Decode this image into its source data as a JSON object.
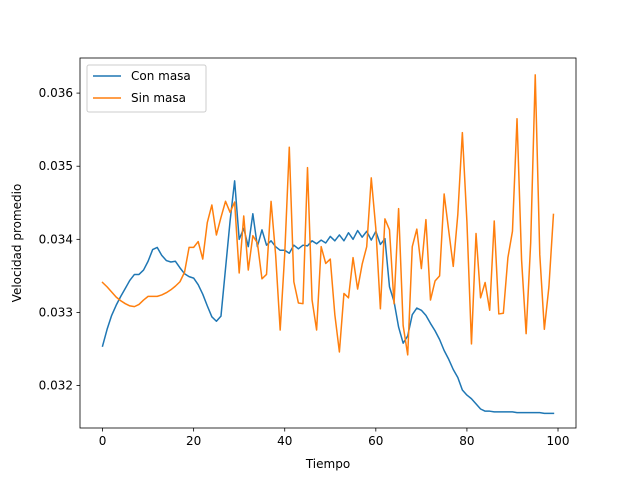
{
  "chart_data": {
    "type": "line",
    "title": "",
    "xlabel": "Tiempo",
    "ylabel": "Velocidad promedio",
    "xlim": [
      -4.95,
      103.95
    ],
    "ylim": [
      0.03142,
      0.03648
    ],
    "xticks": [
      0,
      20,
      40,
      60,
      80,
      100
    ],
    "yticks": [
      0.032,
      0.033,
      0.034,
      0.035,
      0.036
    ],
    "ytick_labels": [
      "0.032",
      "0.033",
      "0.034",
      "0.035",
      "0.036"
    ],
    "grid": false,
    "legend": "upper-left",
    "series": [
      {
        "name": "Con masa",
        "color": "#1f77b4",
        "x": [
          0,
          1,
          2,
          3,
          4,
          5,
          6,
          7,
          8,
          9,
          10,
          11,
          12,
          13,
          14,
          15,
          16,
          17,
          18,
          19,
          20,
          21,
          22,
          23,
          24,
          25,
          26,
          27,
          28,
          29,
          30,
          31,
          32,
          33,
          34,
          35,
          36,
          37,
          38,
          39,
          40,
          41,
          42,
          43,
          44,
          45,
          46,
          47,
          48,
          49,
          50,
          51,
          52,
          53,
          54,
          55,
          56,
          57,
          58,
          59,
          60,
          61,
          62,
          63,
          64,
          65,
          66,
          67,
          68,
          69,
          70,
          71,
          72,
          73,
          74,
          75,
          76,
          77,
          78,
          79,
          80,
          81,
          82,
          83,
          84,
          85,
          86,
          87,
          88,
          89,
          90,
          91,
          92,
          93,
          94,
          95,
          96,
          97,
          98,
          99
        ],
        "values": [
          0.03254,
          0.03277,
          0.03296,
          0.0331,
          0.03322,
          0.03333,
          0.03344,
          0.03352,
          0.03352,
          0.03358,
          0.0337,
          0.03386,
          0.03389,
          0.03378,
          0.03371,
          0.03369,
          0.0337,
          0.03361,
          0.03353,
          0.03349,
          0.03347,
          0.03338,
          0.03325,
          0.03309,
          0.03294,
          0.03288,
          0.03295,
          0.0336,
          0.03425,
          0.0348,
          0.034,
          0.03415,
          0.0339,
          0.03435,
          0.0339,
          0.03413,
          0.03392,
          0.03398,
          0.0339,
          0.03385,
          0.03385,
          0.03381,
          0.03392,
          0.03387,
          0.03392,
          0.03391,
          0.03398,
          0.03394,
          0.03399,
          0.03395,
          0.03404,
          0.03398,
          0.03406,
          0.03398,
          0.03409,
          0.034,
          0.03412,
          0.03403,
          0.03411,
          0.03399,
          0.03411,
          0.03393,
          0.03401,
          0.03335,
          0.03315,
          0.0328,
          0.03258,
          0.03268,
          0.03297,
          0.03306,
          0.03303,
          0.03296,
          0.03285,
          0.03275,
          0.03263,
          0.03248,
          0.03236,
          0.03222,
          0.03211,
          0.03194,
          0.03187,
          0.03182,
          0.03175,
          0.03168,
          0.03165,
          0.03165,
          0.03164,
          0.03164,
          0.03164,
          0.03164,
          0.03164,
          0.03163,
          0.03163,
          0.03163,
          0.03163,
          0.03163,
          0.03163,
          0.03162,
          0.03162,
          0.03162
        ]
      },
      {
        "name": "Sin masa",
        "color": "#ff7f0e",
        "x": [
          0,
          1,
          2,
          3,
          4,
          5,
          6,
          7,
          8,
          9,
          10,
          11,
          12,
          13,
          14,
          15,
          16,
          17,
          18,
          19,
          20,
          21,
          22,
          23,
          24,
          25,
          26,
          27,
          28,
          29,
          30,
          31,
          32,
          33,
          34,
          35,
          36,
          37,
          38,
          39,
          40,
          41,
          42,
          43,
          44,
          45,
          46,
          47,
          48,
          49,
          50,
          51,
          52,
          53,
          54,
          55,
          56,
          57,
          58,
          59,
          60,
          61,
          62,
          63,
          64,
          65,
          66,
          67,
          68,
          69,
          70,
          71,
          72,
          73,
          74,
          75,
          76,
          77,
          78,
          79,
          80,
          81,
          82,
          83,
          84,
          85,
          86,
          87,
          88,
          89,
          90,
          91,
          92,
          93,
          94,
          95,
          96,
          97,
          98,
          99
        ],
        "values": [
          0.03341,
          0.03335,
          0.03328,
          0.03321,
          0.03316,
          0.03312,
          0.03309,
          0.03308,
          0.03311,
          0.03317,
          0.03322,
          0.03322,
          0.03322,
          0.03324,
          0.03327,
          0.03331,
          0.03336,
          0.03342,
          0.03355,
          0.03389,
          0.03389,
          0.03397,
          0.03373,
          0.03423,
          0.03447,
          0.03406,
          0.0343,
          0.03452,
          0.03437,
          0.03451,
          0.03354,
          0.03432,
          0.03358,
          0.03405,
          0.03395,
          0.03346,
          0.03352,
          0.03452,
          0.03379,
          0.03276,
          0.0338,
          0.03526,
          0.03342,
          0.03313,
          0.03312,
          0.03498,
          0.03317,
          0.03276,
          0.0339,
          0.03367,
          0.03373,
          0.03297,
          0.03246,
          0.03326,
          0.0332,
          0.03375,
          0.03332,
          0.03366,
          0.0339,
          0.03484,
          0.03415,
          0.03305,
          0.03428,
          0.03413,
          0.03312,
          0.03442,
          0.03282,
          0.03242,
          0.0339,
          0.03414,
          0.0336,
          0.03427,
          0.03317,
          0.03343,
          0.0335,
          0.03462,
          0.03412,
          0.03363,
          0.03434,
          0.03546,
          0.03424,
          0.03257,
          0.03408,
          0.0332,
          0.03341,
          0.03303,
          0.03425,
          0.03298,
          0.03299,
          0.03375,
          0.03411,
          0.03565,
          0.03372,
          0.03271,
          0.03395,
          0.03625,
          0.03379,
          0.03277,
          0.03335,
          0.03434
        ]
      }
    ]
  }
}
